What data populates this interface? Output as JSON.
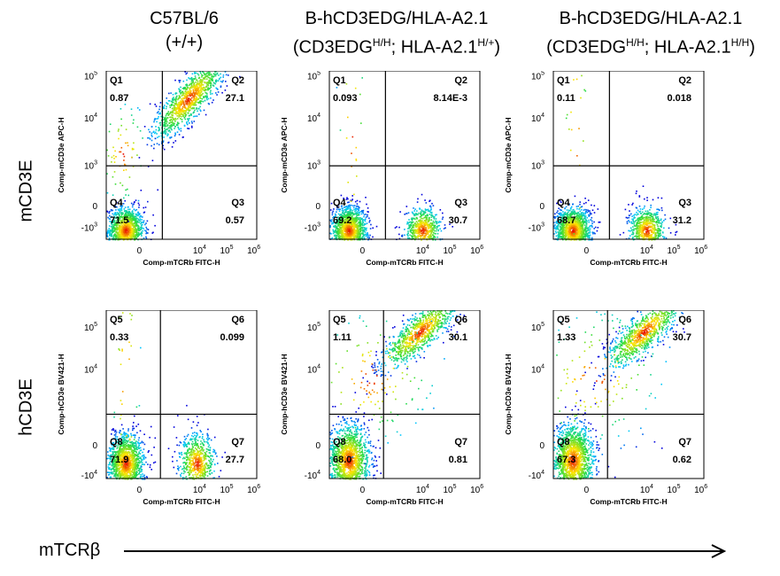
{
  "column_headers": [
    {
      "line1": "C57BL/6",
      "line2": "(+/+)"
    },
    {
      "line1": "B-hCD3EDG/HLA-A2.1",
      "line2_prefix": "(CD3EDG",
      "line2_sup1": "H/H",
      "line2_mid": "; HLA-A2.1",
      "line2_sup2": "H/+",
      "line2_suffix": ")"
    },
    {
      "line1": "B-hCD3EDG/HLA-A2.1",
      "line2_prefix": "(CD3EDG",
      "line2_sup1": "H/H",
      "line2_mid": "; HLA-A2.1",
      "line2_sup2": "H/H",
      "line2_suffix": ")"
    }
  ],
  "row_labels": [
    "mCD3E",
    "hCD3E"
  ],
  "x_arrow_label": "mTCRβ",
  "chart_data": [
    {
      "type": "scatter",
      "row": 0,
      "col": 0,
      "xlabel": "Comp-mTCRb FITC-H",
      "ylabel": "Comp-mCD3e APC-H",
      "quadrants": [
        {
          "name": "Q1",
          "value": "0.87",
          "pos": "tl"
        },
        {
          "name": "Q2",
          "value": "27.1",
          "pos": "tr"
        },
        {
          "name": "Q3",
          "value": "0.57",
          "pos": "br"
        },
        {
          "name": "Q4",
          "value": "71.5",
          "pos": "bl"
        }
      ],
      "y_ticks": [
        {
          "base": "10",
          "exp": "5"
        },
        {
          "base": "10",
          "exp": "4"
        },
        {
          "base": "10",
          "exp": "3"
        },
        {
          "base": "0",
          "exp": ""
        },
        {
          "base": "-10",
          "exp": "3"
        }
      ],
      "x_ticks": [
        {
          "base": "0",
          "exp": ""
        },
        {
          "base": "10",
          "exp": "4"
        },
        {
          "base": "10",
          "exp": "5"
        },
        {
          "base": "10",
          "exp": "6"
        }
      ],
      "populations": [
        {
          "cx": 0.7,
          "cy": 0.3,
          "sx": 0.06,
          "sy": 0.07,
          "rot": 0,
          "n": 1300
        },
        {
          "cx": 3.0,
          "cy": 4.6,
          "sx": 0.16,
          "sy": 0.05,
          "rot": 45,
          "n": 1100
        },
        {
          "cx": 0.6,
          "cy": 2.8,
          "sx": 0.09,
          "sy": 0.16,
          "rot": 0,
          "n": 90
        }
      ]
    },
    {
      "type": "scatter",
      "row": 0,
      "col": 1,
      "xlabel": "Comp-mTCRb FITC-H",
      "ylabel": "Comp-mCD3e APC-H",
      "quadrants": [
        {
          "name": "Q1",
          "value": "0.093",
          "pos": "tl"
        },
        {
          "name": "Q2",
          "value": "8.14E-3",
          "pos": "tr"
        },
        {
          "name": "Q3",
          "value": "30.7",
          "pos": "br"
        },
        {
          "name": "Q4",
          "value": "69.2",
          "pos": "bl"
        }
      ],
      "y_ticks": [
        {
          "base": "10",
          "exp": "5"
        },
        {
          "base": "10",
          "exp": "4"
        },
        {
          "base": "10",
          "exp": "3"
        },
        {
          "base": "0",
          "exp": ""
        },
        {
          "base": "-10",
          "exp": "3"
        }
      ],
      "x_ticks": [
        {
          "base": "0",
          "exp": ""
        },
        {
          "base": "10",
          "exp": "4"
        },
        {
          "base": "10",
          "exp": "5"
        },
        {
          "base": "10",
          "exp": "6"
        }
      ],
      "populations": [
        {
          "cx": 0.7,
          "cy": 0.3,
          "sx": 0.06,
          "sy": 0.07,
          "rot": 0,
          "n": 1400
        },
        {
          "cx": 3.4,
          "cy": 0.3,
          "sx": 0.06,
          "sy": 0.07,
          "rot": 0,
          "n": 700
        },
        {
          "cx": 0.8,
          "cy": 3.5,
          "sx": 0.05,
          "sy": 0.55,
          "rot": 0,
          "n": 40
        }
      ]
    },
    {
      "type": "scatter",
      "row": 0,
      "col": 2,
      "xlabel": "Comp-mTCRb FITC-H",
      "ylabel": "Comp-mCD3e APC-H",
      "quadrants": [
        {
          "name": "Q1",
          "value": "0.11",
          "pos": "tl"
        },
        {
          "name": "Q2",
          "value": "0.018",
          "pos": "tr"
        },
        {
          "name": "Q3",
          "value": "31.2",
          "pos": "br"
        },
        {
          "name": "Q4",
          "value": "68.7",
          "pos": "bl"
        }
      ],
      "y_ticks": [
        {
          "base": "10",
          "exp": "5"
        },
        {
          "base": "10",
          "exp": "4"
        },
        {
          "base": "10",
          "exp": "3"
        },
        {
          "base": "0",
          "exp": ""
        },
        {
          "base": "-10",
          "exp": "3"
        }
      ],
      "x_ticks": [
        {
          "base": "0",
          "exp": ""
        },
        {
          "base": "10",
          "exp": "4"
        },
        {
          "base": "10",
          "exp": "5"
        },
        {
          "base": "10",
          "exp": "6"
        }
      ],
      "populations": [
        {
          "cx": 0.7,
          "cy": 0.3,
          "sx": 0.06,
          "sy": 0.07,
          "rot": 0,
          "n": 1400
        },
        {
          "cx": 3.4,
          "cy": 0.3,
          "sx": 0.06,
          "sy": 0.07,
          "rot": 0,
          "n": 700
        },
        {
          "cx": 0.8,
          "cy": 3.5,
          "sx": 0.05,
          "sy": 0.55,
          "rot": 0,
          "n": 40
        }
      ]
    },
    {
      "type": "scatter",
      "row": 1,
      "col": 0,
      "xlabel": "Comp-mTCRb FITC-H",
      "ylabel": "Comp-hCD3e BV421-H",
      "quadrants": [
        {
          "name": "Q5",
          "value": "0.33",
          "pos": "tl"
        },
        {
          "name": "Q6",
          "value": "0.099",
          "pos": "tr"
        },
        {
          "name": "Q7",
          "value": "27.7",
          "pos": "br"
        },
        {
          "name": "Q8",
          "value": "71.9",
          "pos": "bl"
        }
      ],
      "y_ticks": [
        {
          "base": "10",
          "exp": "5"
        },
        {
          "base": "10",
          "exp": "4"
        },
        {
          "base": "0",
          "exp": ""
        },
        {
          "base": "-10",
          "exp": "4"
        }
      ],
      "x_ticks": [
        {
          "base": "0",
          "exp": ""
        },
        {
          "base": "10",
          "exp": "4"
        },
        {
          "base": "10",
          "exp": "5"
        },
        {
          "base": "10",
          "exp": "6"
        }
      ],
      "populations": [
        {
          "cx": 0.7,
          "cy": 0.5,
          "sx": 0.06,
          "sy": 0.09,
          "rot": 0,
          "n": 1400
        },
        {
          "cx": 3.3,
          "cy": 0.5,
          "sx": 0.06,
          "sy": 0.09,
          "rot": 0,
          "n": 700
        },
        {
          "cx": 0.7,
          "cy": 3.2,
          "sx": 0.05,
          "sy": 0.6,
          "rot": 0,
          "n": 50
        }
      ]
    },
    {
      "type": "scatter",
      "row": 1,
      "col": 1,
      "xlabel": "Comp-mTCRb FITC-H",
      "ylabel": "Comp-hCD3e BV421-H",
      "quadrants": [
        {
          "name": "Q5",
          "value": "1.11",
          "pos": "tl"
        },
        {
          "name": "Q6",
          "value": "30.1",
          "pos": "tr"
        },
        {
          "name": "Q7",
          "value": "0.81",
          "pos": "br"
        },
        {
          "name": "Q8",
          "value": "68.0",
          "pos": "bl"
        }
      ],
      "y_ticks": [
        {
          "base": "10",
          "exp": "5"
        },
        {
          "base": "10",
          "exp": "4"
        },
        {
          "base": "0",
          "exp": ""
        },
        {
          "base": "-10",
          "exp": "4"
        }
      ],
      "x_ticks": [
        {
          "base": "0",
          "exp": ""
        },
        {
          "base": "10",
          "exp": "4"
        },
        {
          "base": "10",
          "exp": "5"
        },
        {
          "base": "10",
          "exp": "6"
        }
      ],
      "populations": [
        {
          "cx": 0.7,
          "cy": 0.6,
          "sx": 0.07,
          "sy": 0.11,
          "rot": 0,
          "n": 1500
        },
        {
          "cx": 3.3,
          "cy": 4.8,
          "sx": 0.16,
          "sy": 0.05,
          "rot": 40,
          "n": 900
        },
        {
          "cx": 1.5,
          "cy": 3.3,
          "sx": 0.25,
          "sy": 0.2,
          "rot": 30,
          "n": 160
        }
      ]
    },
    {
      "type": "scatter",
      "row": 1,
      "col": 2,
      "xlabel": "Comp-mTCRb FITC-H",
      "ylabel": "Comp-hCD3e BV421-H",
      "quadrants": [
        {
          "name": "Q5",
          "value": "1.33",
          "pos": "tl"
        },
        {
          "name": "Q6",
          "value": "30.7",
          "pos": "tr"
        },
        {
          "name": "Q7",
          "value": "0.62",
          "pos": "br"
        },
        {
          "name": "Q8",
          "value": "67.3",
          "pos": "bl"
        }
      ],
      "y_ticks": [
        {
          "base": "10",
          "exp": "5"
        },
        {
          "base": "10",
          "exp": "4"
        },
        {
          "base": "0",
          "exp": ""
        },
        {
          "base": "-10",
          "exp": "4"
        }
      ],
      "x_ticks": [
        {
          "base": "0",
          "exp": ""
        },
        {
          "base": "10",
          "exp": "4"
        },
        {
          "base": "10",
          "exp": "5"
        },
        {
          "base": "10",
          "exp": "6"
        }
      ],
      "populations": [
        {
          "cx": 0.7,
          "cy": 0.6,
          "sx": 0.07,
          "sy": 0.11,
          "rot": 0,
          "n": 1500
        },
        {
          "cx": 3.3,
          "cy": 4.8,
          "sx": 0.16,
          "sy": 0.05,
          "rot": 40,
          "n": 900
        },
        {
          "cx": 1.5,
          "cy": 3.3,
          "sx": 0.25,
          "sy": 0.2,
          "rot": 30,
          "n": 180
        }
      ]
    }
  ]
}
